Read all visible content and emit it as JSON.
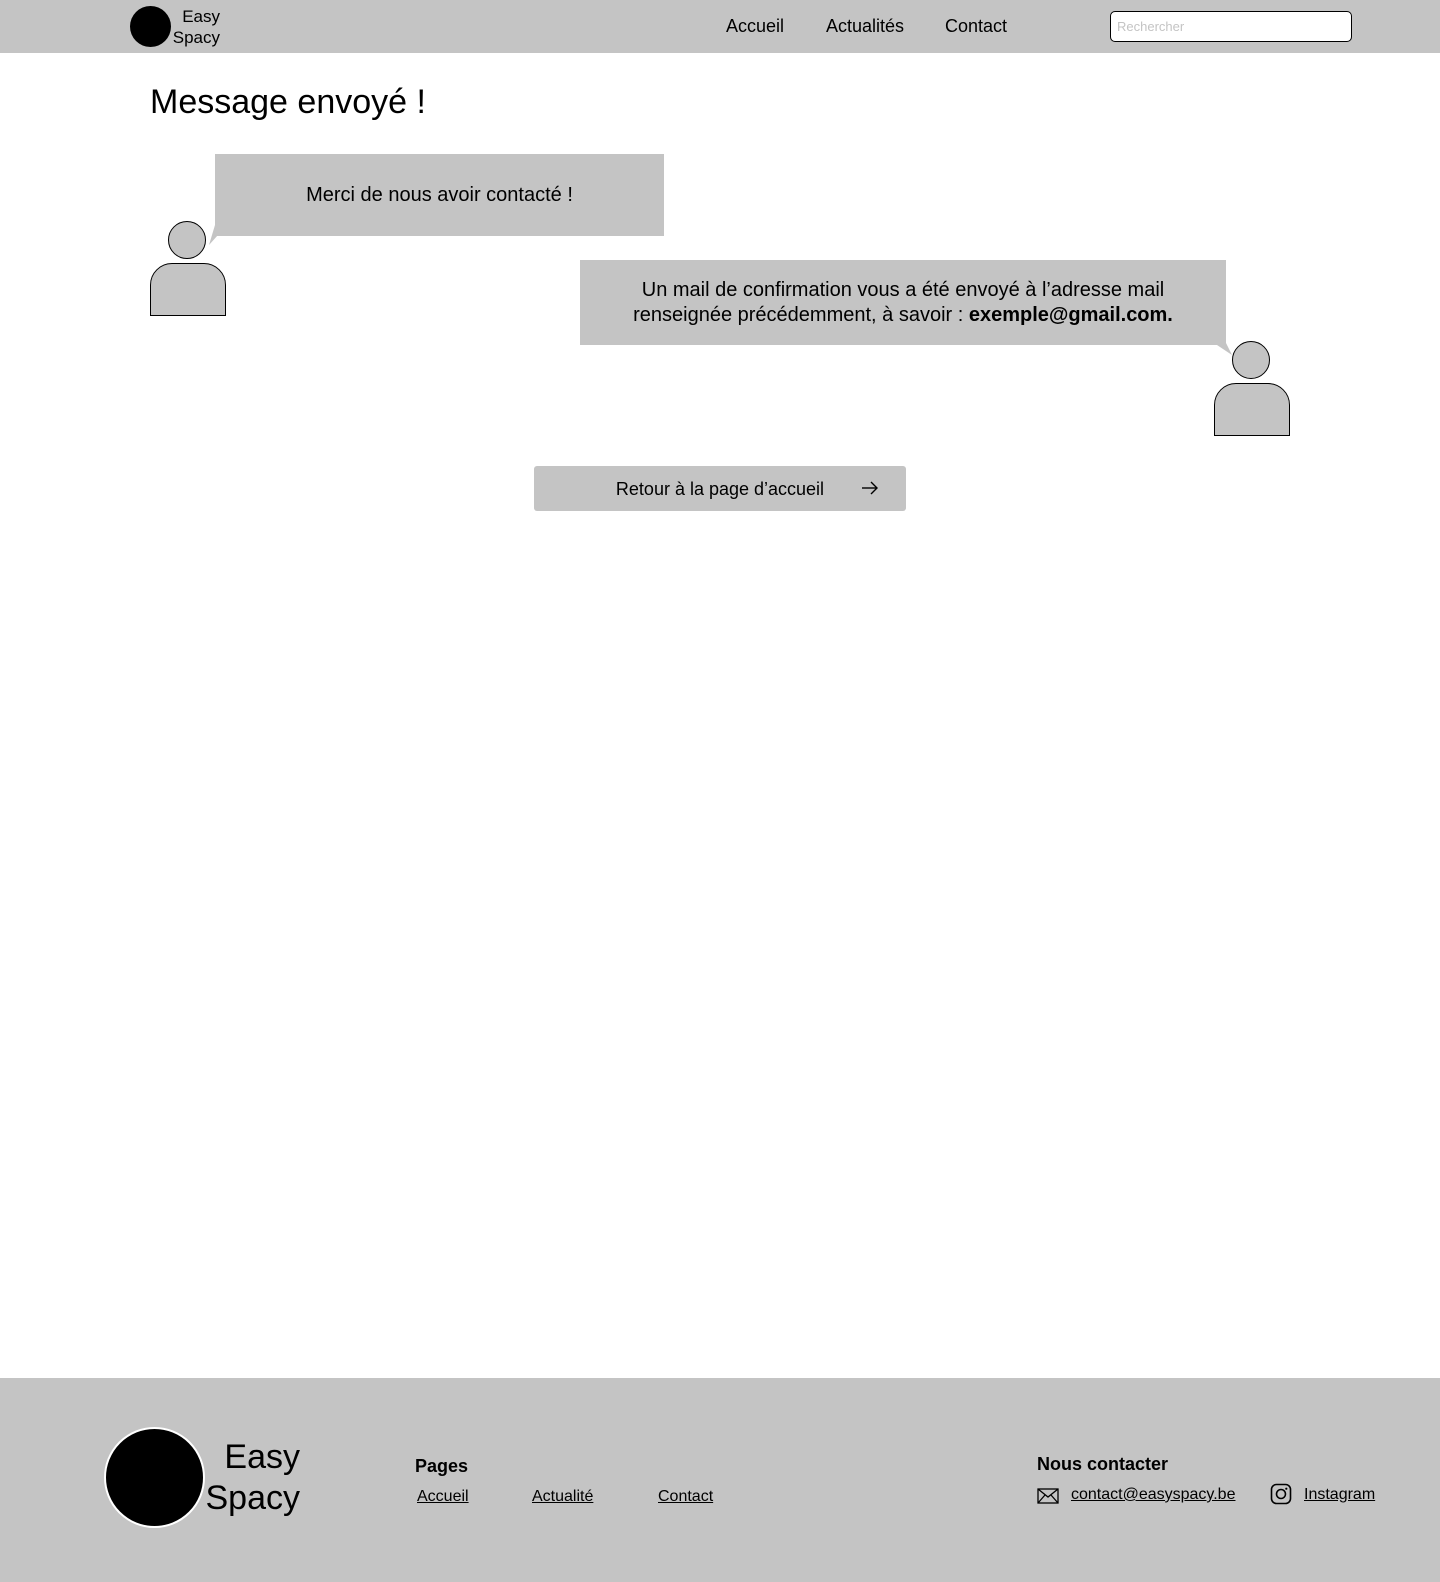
{
  "header": {
    "brand_line1": "Easy",
    "brand_line2": "Spacy",
    "nav": {
      "accueil": "Accueil",
      "actualites": "Actualités",
      "contact": "Contact"
    },
    "search_placeholder": "Rechercher"
  },
  "main": {
    "title": "Message envoyé !",
    "bubble_1": "Merci de nous avoir contacté !",
    "bubble_2_prefix": "Un mail de confirmation vous a été envoyé à l’adresse mail renseignée précédemment, à savoir : ",
    "bubble_2_email": "exemple@gmail.com.",
    "back_button": "Retour à la page d’accueil"
  },
  "footer": {
    "brand_line1": "Easy",
    "brand_line2": "Spacy",
    "pages_heading": "Pages",
    "pages": {
      "accueil": "Accueil",
      "actualite": "Actualité",
      "contact": "Contact"
    },
    "contact_heading": "Nous contacter",
    "email": "contact@easyspacy.be",
    "instagram": "Instagram"
  },
  "icons": {
    "mail": "mail-icon",
    "instagram": "instagram-icon",
    "arrow": "arrow-right-icon"
  },
  "colors": {
    "bar_gray": "#c4c4c4",
    "text": "#000000",
    "background": "#ffffff"
  }
}
